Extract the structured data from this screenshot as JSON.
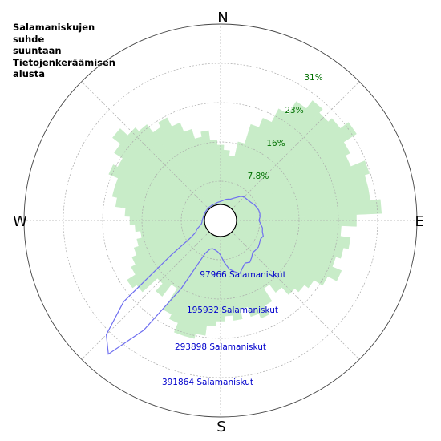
{
  "chart_data": {
    "type": "polar",
    "title": "Salamaniskujen\nsuhde\nsuuntaan\nTietojenkeräämisen\nalusta",
    "compass": {
      "north": "N",
      "east": "E",
      "south": "S",
      "west": "W"
    },
    "radial_percent_labels": [
      "7.8%",
      "16%",
      "23%",
      "31%"
    ],
    "radial_count_labels": [
      "97966 Salamaniskut",
      "195932 Salamaniskut",
      "293898 Salamaniskut",
      "391864 Salamaniskut"
    ],
    "rmax_percent": 39,
    "rmax_count": 489830,
    "grid": true,
    "series": [
      {
        "kind": "bars",
        "units": "percent",
        "color": "#c8ecc8",
        "direction_deg": [
          0,
          5,
          10,
          15,
          20,
          25,
          30,
          35,
          40,
          45,
          50,
          55,
          60,
          65,
          70,
          75,
          80,
          85,
          90,
          95,
          100,
          105,
          110,
          115,
          120,
          125,
          130,
          135,
          140,
          145,
          150,
          155,
          160,
          165,
          170,
          175,
          180,
          185,
          190,
          195,
          200,
          205,
          210,
          215,
          220,
          225,
          230,
          235,
          240,
          245,
          250,
          255,
          260,
          265,
          270,
          275,
          280,
          285,
          290,
          295,
          300,
          305,
          310,
          315,
          320,
          325,
          330,
          335,
          340,
          345,
          350,
          355
        ],
        "values": [
          15,
          14,
          13,
          16,
          20,
          22,
          25,
          28,
          30,
          29,
          30,
          32,
          29,
          28,
          31,
          30,
          30,
          32,
          27,
          24,
          26,
          25,
          24,
          26,
          24,
          22,
          21,
          20,
          18,
          16,
          19,
          21,
          20,
          18,
          20,
          19,
          20,
          21,
          23,
          24,
          24,
          22,
          21,
          16,
          19,
          17,
          21,
          22,
          20,
          19,
          18,
          17,
          16,
          17,
          18,
          19,
          21,
          22,
          22,
          24,
          23,
          25,
          27,
          25,
          24,
          22,
          23,
          21,
          19,
          17,
          18,
          16
        ]
      },
      {
        "kind": "line",
        "units": "count",
        "color": "#6f6ff0",
        "direction_deg": [
          0,
          5,
          10,
          15,
          20,
          25,
          30,
          35,
          40,
          45,
          50,
          55,
          60,
          65,
          70,
          75,
          80,
          85,
          90,
          95,
          100,
          105,
          110,
          115,
          120,
          125,
          130,
          135,
          140,
          145,
          150,
          155,
          160,
          165,
          170,
          175,
          180,
          185,
          190,
          195,
          200,
          205,
          210,
          215,
          220,
          225,
          230,
          235,
          240,
          245,
          250,
          255,
          260,
          265,
          270,
          275,
          280,
          285,
          290,
          295,
          300,
          305,
          310,
          315,
          320,
          325,
          330,
          335,
          340,
          345,
          350,
          355
        ],
        "values": [
          8000,
          10000,
          13000,
          16000,
          18000,
          20000,
          26000,
          33000,
          42000,
          47000,
          48000,
          50000,
          53000,
          58000,
          61000,
          64000,
          65000,
          64000,
          61000,
          66000,
          72000,
          74000,
          80000,
          76000,
          79000,
          82000,
          81000,
          80000,
          88000,
          95000,
          90000,
          98000,
          110000,
          100000,
          90000,
          70000,
          50000,
          42000,
          38000,
          36000,
          39000,
          55000,
          170000,
          320000,
          430000,
          395000,
          300000,
          120000,
          50000,
          30000,
          25000,
          15000,
          9000,
          7000,
          6000,
          5000,
          4000,
          4000,
          3500,
          3500,
          3500,
          3500,
          3500,
          3500,
          3500,
          3500,
          4000,
          4000,
          4000,
          5000,
          6000,
          7000
        ]
      }
    ]
  }
}
